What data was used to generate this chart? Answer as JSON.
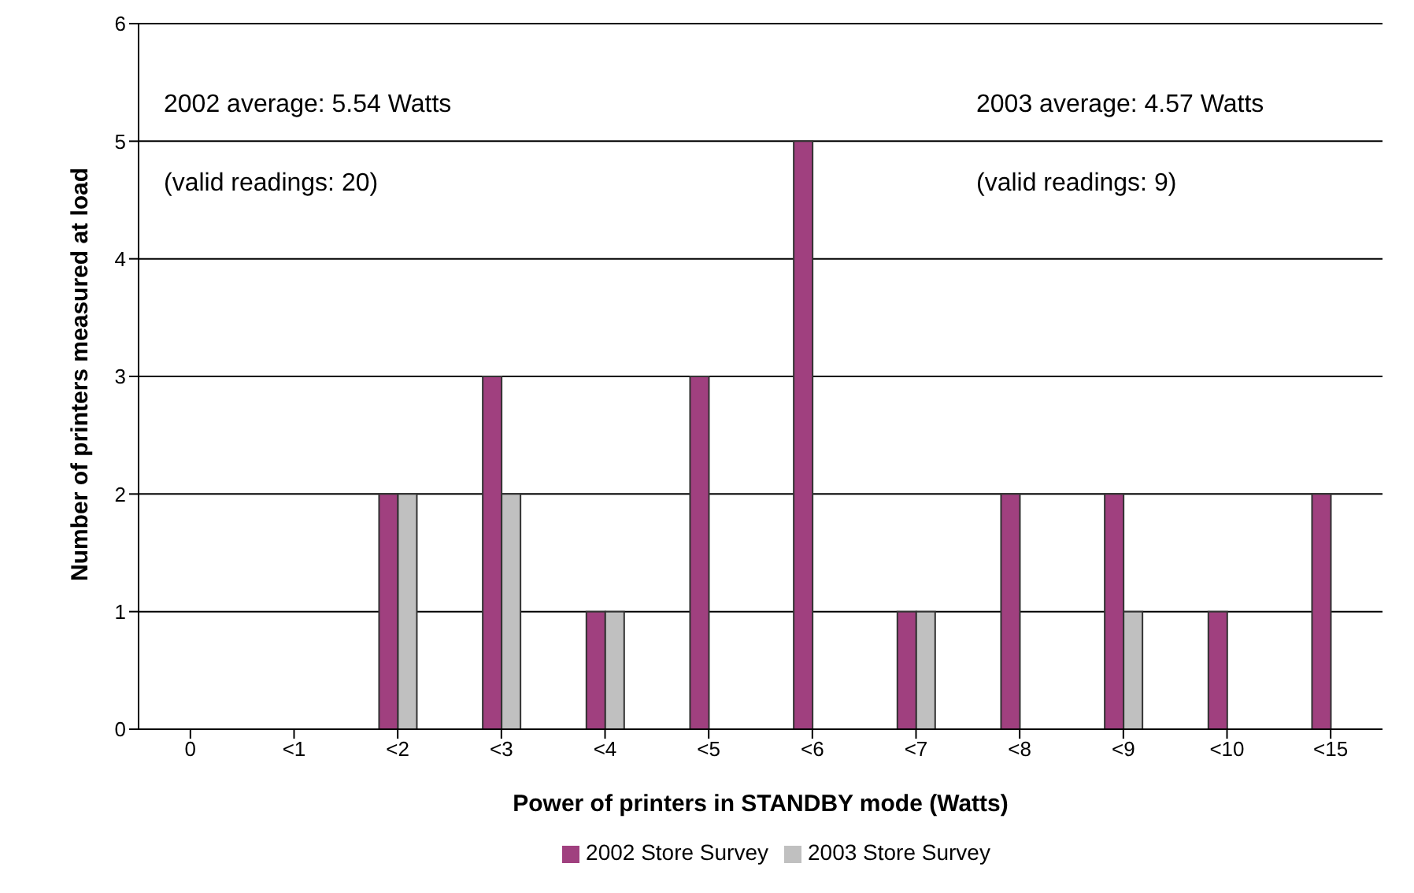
{
  "chart_data": {
    "type": "bar",
    "xlabel": "Power of printers in STANDBY mode (Watts)",
    "ylabel": "Number of printers measured at load",
    "categories": [
      "0",
      "<1",
      "<2",
      "<3",
      "<4",
      "<5",
      "<6",
      "<7",
      "<8",
      "<9",
      "<10",
      "<15"
    ],
    "series": [
      {
        "name": "2002 Store Survey",
        "color": "#a0407f",
        "values": [
          0,
          0,
          2,
          3,
          1,
          3,
          5,
          1,
          2,
          2,
          1,
          2
        ]
      },
      {
        "name": "2003 Store Survey",
        "color": "#c0c0c0",
        "values": [
          0,
          0,
          2,
          2,
          1,
          0,
          0,
          1,
          0,
          1,
          0,
          0
        ]
      }
    ],
    "ylim": [
      0,
      6
    ],
    "yticks": [
      0,
      1,
      2,
      3,
      4,
      5,
      6
    ],
    "grid": "y",
    "legend": "bottom",
    "annotations": [
      "2002 average: 5.54 Watts",
      "(valid readings: 20)",
      "2003 average: 4.57 Watts",
      "(valid readings: 9)"
    ]
  }
}
